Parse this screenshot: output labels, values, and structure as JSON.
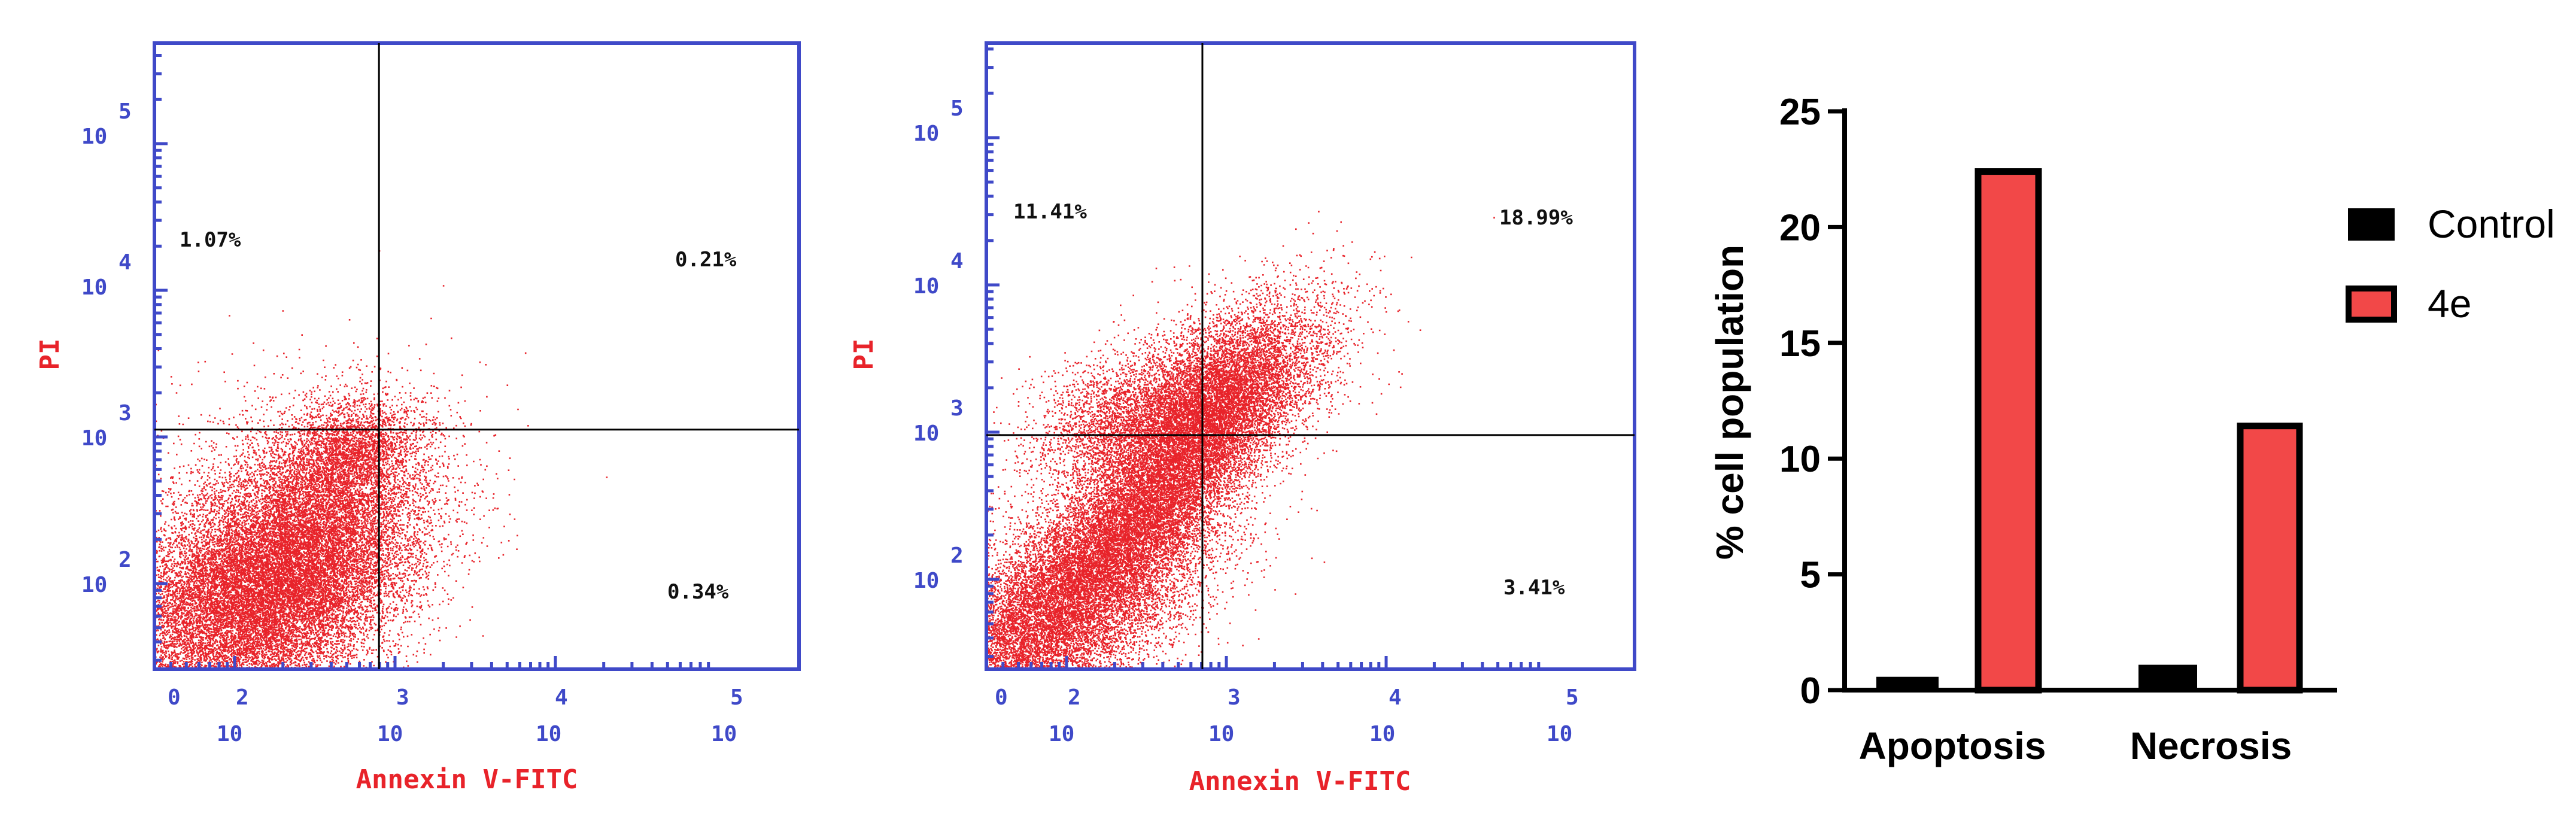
{
  "colors": {
    "frame_blue": "#3f49c8",
    "dot_red": "#e8232a",
    "bar_control": "#000000",
    "bar_4e": "#f24848"
  },
  "chart_data": [
    {
      "type": "scatter",
      "panel": "control",
      "xlabel": "Annexin V-FITC",
      "ylabel": "PI",
      "scale": "log",
      "x_ticks": [
        {
          "base": "10",
          "exp": "0"
        },
        {
          "base": "10",
          "exp": "2"
        },
        {
          "base": "10",
          "exp": "3"
        },
        {
          "base": "10",
          "exp": "4"
        },
        {
          "base": "10",
          "exp": "5"
        }
      ],
      "y_ticks": [
        {
          "base": "10",
          "exp": "2"
        },
        {
          "base": "10",
          "exp": "3"
        },
        {
          "base": "10",
          "exp": "4"
        },
        {
          "base": "10",
          "exp": "5"
        }
      ],
      "gate": {
        "x_log": 2.9,
        "y_log": 3.05
      },
      "quadrants": {
        "upper_left": "1.07%",
        "upper_right": "0.21%",
        "lower_right": "0.34%"
      }
    },
    {
      "type": "scatter",
      "panel": "4e",
      "xlabel": "Annexin V-FITC",
      "ylabel": "PI",
      "scale": "log",
      "x_ticks": [
        {
          "base": "10",
          "exp": "0"
        },
        {
          "base": "10",
          "exp": "2"
        },
        {
          "base": "10",
          "exp": "3"
        },
        {
          "base": "10",
          "exp": "4"
        },
        {
          "base": "10",
          "exp": "5"
        }
      ],
      "y_ticks": [
        {
          "base": "10",
          "exp": "2"
        },
        {
          "base": "10",
          "exp": "3"
        },
        {
          "base": "10",
          "exp": "4"
        },
        {
          "base": "10",
          "exp": "5"
        }
      ],
      "gate": {
        "x_log": 2.85,
        "y_log": 2.98
      },
      "quadrants": {
        "upper_left": "11.41%",
        "upper_right": "18.99%",
        "lower_right": "3.41%"
      }
    },
    {
      "type": "bar",
      "categories": [
        "Apoptosis",
        "Necrosis"
      ],
      "series": [
        {
          "name": "Control",
          "values": [
            0.55,
            1.07
          ]
        },
        {
          "name": "4e",
          "values": [
            22.4,
            11.41
          ]
        }
      ],
      "ylabel": "% cell population",
      "ylim": [
        0,
        25
      ],
      "yticks": [
        "0",
        "5",
        "10",
        "15",
        "20",
        "25"
      ],
      "legend": "right"
    }
  ]
}
